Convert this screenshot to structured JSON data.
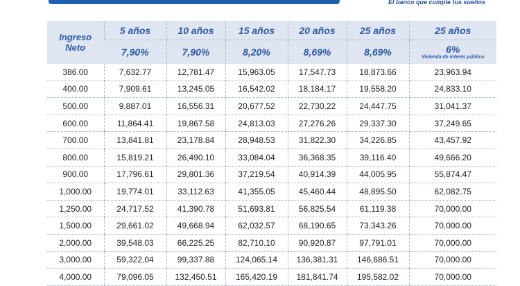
{
  "slogan": "El banco que cumple tus sueños",
  "table": {
    "first_header": "Ingreso Neto",
    "columns": [
      {
        "years": "5 años",
        "rate": "7,90%"
      },
      {
        "years": "10 años",
        "rate": "7,90%"
      },
      {
        "years": "15 años",
        "rate": "8,20%"
      },
      {
        "years": "20 años",
        "rate": "8,69%"
      },
      {
        "years": "25 años",
        "rate": "8,69%"
      },
      {
        "years": "25 años",
        "rate": "6%",
        "note": "Vivienda de interés público"
      }
    ],
    "rows": [
      [
        "386.00",
        "7,632.77",
        "12,781.47",
        "15,963.05",
        "17,547.73",
        "18,873.66",
        "23,963.94"
      ],
      [
        "400.00",
        "7,909.61",
        "13,245.05",
        "16,542.02",
        "18,184.17",
        "19,558.20",
        "24,833.10"
      ],
      [
        "500.00",
        "9,887.01",
        "16,556.31",
        "20,677.52",
        "22,730.22",
        "24,447.75",
        "31,041.37"
      ],
      [
        "600.00",
        "11,864.41",
        "19,867.58",
        "24,813.03",
        "27,276.26",
        "29,337.30",
        "37,249.65"
      ],
      [
        "700.00",
        "13,841.81",
        "23,178.84",
        "28,948.53",
        "31,822.30",
        "34,226.85",
        "43,457.92"
      ],
      [
        "800.00",
        "15,819.21",
        "26,490.10",
        "33,084.04",
        "36,368.35",
        "39,116.40",
        "49,666.20"
      ],
      [
        "900.00",
        "17,796.61",
        "29,801.36",
        "37,219.54",
        "40,914.39",
        "44,005.95",
        "55,874.47"
      ],
      [
        "1,000.00",
        "19,774.01",
        "33,112.63",
        "41,355.05",
        "45,460.44",
        "48,895.50",
        "62,082.75"
      ],
      [
        "1,250.00",
        "24,717.52",
        "41,390.78",
        "51,693.81",
        "56,825.54",
        "61,119.38",
        "70,000.00"
      ],
      [
        "1,500.00",
        "29,661.02",
        "49,668.94",
        "62,032.57",
        "68,190.65",
        "73,343.26",
        "70,000.00"
      ],
      [
        "2,000.00",
        "39,548.03",
        "66,225.25",
        "82,710.10",
        "90,920.87",
        "97,791.01",
        "70,000.00"
      ],
      [
        "3,000.00",
        "59,322.04",
        "99,337.88",
        "124,065.14",
        "136,381.31",
        "146,686.51",
        "70,000.00"
      ],
      [
        "4,000.00",
        "79,096.05",
        "132,450.51",
        "165,420.19",
        "181,841.74",
        "195,582.02",
        "70,000.00"
      ]
    ]
  }
}
